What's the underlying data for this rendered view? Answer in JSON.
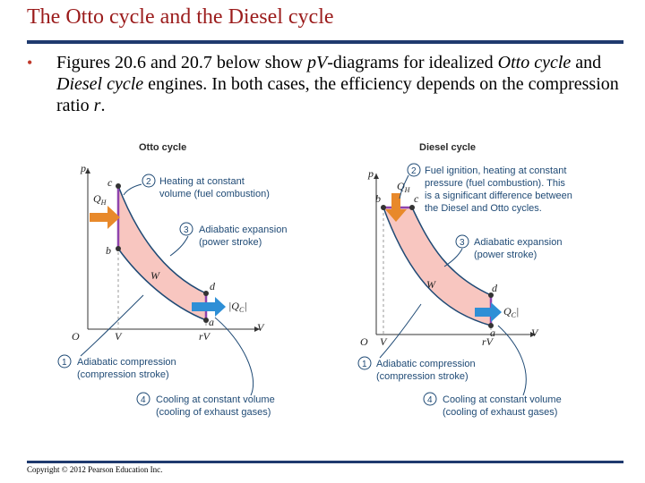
{
  "slide": {
    "title": "The Otto cycle and the Diesel cycle",
    "bullet": {
      "pre": "Figures 20.6 and 20.7 below show ",
      "pv": "pV",
      "mid1": "-diagrams for idealized ",
      "otto": "Otto cycle",
      "mid2": " and ",
      "diesel": "Diesel cycle",
      "mid3": " engines. In both cases, the efficiency depends on the compression ratio ",
      "r": "r",
      "end": "."
    },
    "copyright": "Copyright © 2012 Pearson Education Inc."
  },
  "otto": {
    "title": "Otto cycle",
    "axes": {
      "p": "p",
      "V": "V",
      "O": "O",
      "Vtick": "V",
      "rVtick": "rV"
    },
    "points": {
      "a": "a",
      "b": "b",
      "c": "c",
      "d": "d"
    },
    "work": "W",
    "qh": "Q",
    "qh_sub": "H",
    "qc": "|Q",
    "qc_sub": "C",
    "qc_end": "|",
    "steps": [
      {
        "num": "1",
        "line1": "Adiabatic compression",
        "line2": "(compression stroke)"
      },
      {
        "num": "2",
        "line1": "Heating at constant",
        "line2": "volume (fuel combustion)"
      },
      {
        "num": "3",
        "line1": "Adiabatic expansion",
        "line2": "(power stroke)"
      },
      {
        "num": "4",
        "line1": "Cooling at constant volume",
        "line2": "(cooling of exhaust gases)"
      }
    ]
  },
  "diesel": {
    "title": "Diesel cycle",
    "axes": {
      "p": "p",
      "V": "V",
      "O": "O",
      "Vtick": "V",
      "rVtick": "rV"
    },
    "points": {
      "a": "a",
      "b": "b",
      "c": "c",
      "d": "d"
    },
    "work": "W",
    "qh": "Q",
    "qh_sub": "H",
    "qc": "Q",
    "qc_sub": "C",
    "qc_end": "|",
    "steps": [
      {
        "num": "1",
        "line1": "Adiabatic compression",
        "line2": "(compression stroke)"
      },
      {
        "num": "2",
        "line1": "Fuel ignition, heating at constant",
        "line2": "pressure (fuel combustion).  This",
        "line3": "is a significant difference between",
        "line4": "the Diesel and Otto cycles."
      },
      {
        "num": "3",
        "line1": "Adiabatic expansion",
        "line2": "(power stroke)"
      },
      {
        "num": "4",
        "line1": "Cooling at constant volume",
        "line2": "(cooling of exhaust gases)"
      }
    ]
  },
  "colors": {
    "title": "#9b1c1c",
    "rule": "#1f3a6e",
    "cycle_fill": "#f8c6c0",
    "cycle_stroke": "#1f4a75",
    "heat_in": "#e8892b",
    "heat_out": "#2e8fd6",
    "vertical_leg": "#8e44ad"
  }
}
